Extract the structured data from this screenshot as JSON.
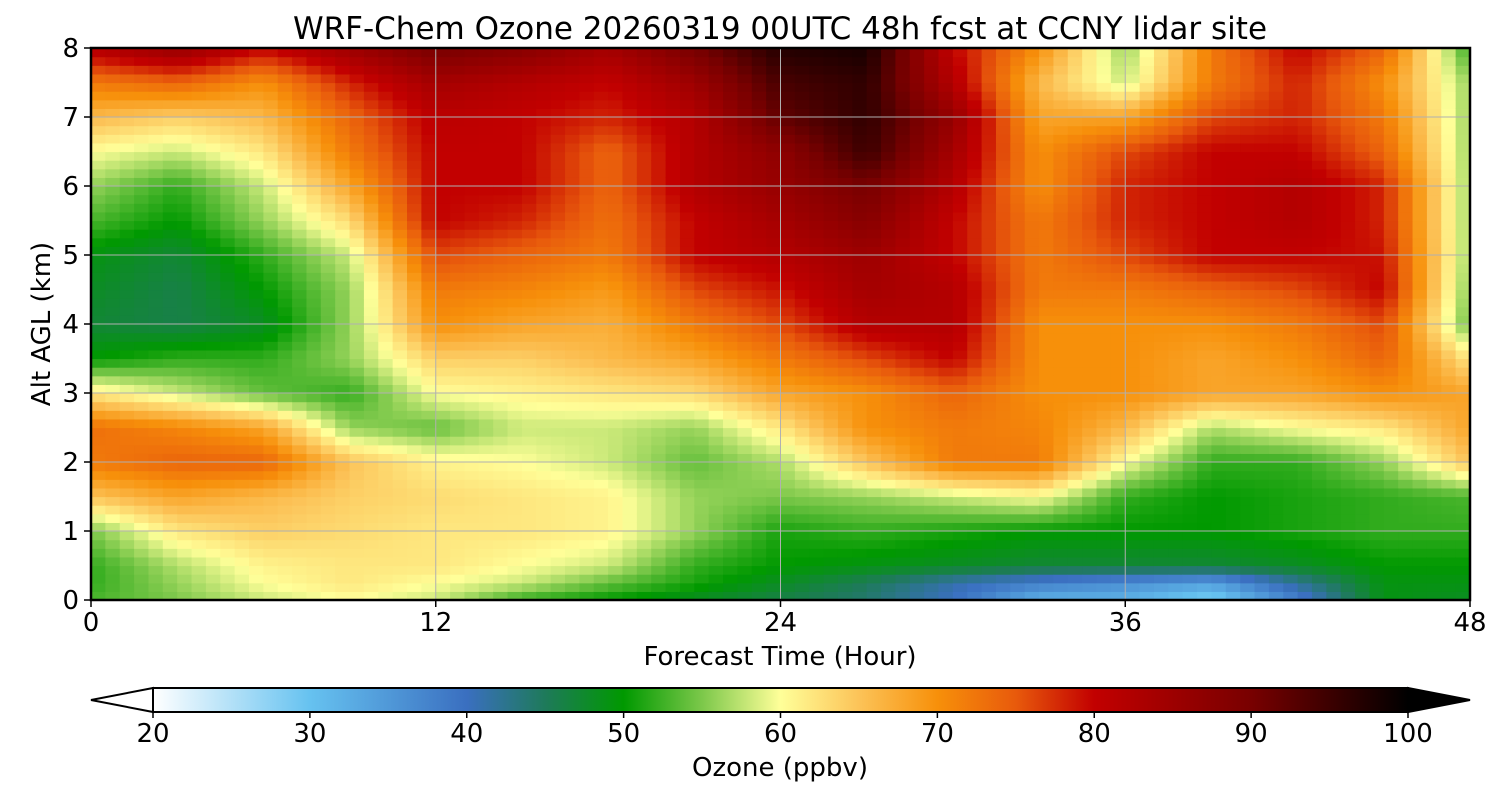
{
  "chart_data": {
    "type": "heatmap",
    "title": "WRF-Chem Ozone  20260319 00UTC 48h fcst at CCNY lidar site",
    "xlabel": "Forecast Time (Hour)",
    "ylabel": "Alt AGL (km)",
    "xlim": [
      0,
      48
    ],
    "ylim": [
      0,
      8
    ],
    "xticks": [
      0,
      12,
      24,
      36,
      48
    ],
    "yticks": [
      0,
      1,
      2,
      3,
      4,
      5,
      6,
      7,
      8
    ],
    "grid": true,
    "colorbar": {
      "label": "Ozone  (ppbv)",
      "min": 20,
      "max": 100,
      "ticks": [
        20,
        30,
        40,
        50,
        60,
        70,
        80,
        90,
        100
      ],
      "extend": "both",
      "stops": [
        {
          "v": 20,
          "c": "#ffffff"
        },
        {
          "v": 30,
          "c": "#66c2f0"
        },
        {
          "v": 40,
          "c": "#3a6fc0"
        },
        {
          "v": 45,
          "c": "#1e7a5a"
        },
        {
          "v": 50,
          "c": "#009900"
        },
        {
          "v": 55,
          "c": "#7cc84a"
        },
        {
          "v": 60,
          "c": "#ffff99"
        },
        {
          "v": 65,
          "c": "#fcc358"
        },
        {
          "v": 70,
          "c": "#f7900a"
        },
        {
          "v": 75,
          "c": "#e85a0c"
        },
        {
          "v": 80,
          "c": "#c20000"
        },
        {
          "v": 90,
          "c": "#780000"
        },
        {
          "v": 100,
          "c": "#000000"
        }
      ]
    },
    "x": [
      0,
      3,
      6,
      9,
      12,
      15,
      18,
      21,
      24,
      27,
      30,
      33,
      36,
      39,
      42,
      45,
      48
    ],
    "y": [
      0,
      0.25,
      0.5,
      1,
      1.5,
      2,
      2.5,
      3,
      3.5,
      4,
      4.5,
      5,
      5.5,
      6,
      6.5,
      7,
      7.5,
      8
    ],
    "z": [
      [
        53,
        55,
        58,
        60,
        58,
        52,
        50,
        48,
        46,
        44,
        40,
        32,
        32,
        28,
        38,
        49,
        48
      ],
      [
        52,
        56,
        60,
        62,
        60,
        58,
        54,
        51,
        48,
        45,
        41,
        38,
        36,
        34,
        42,
        49,
        49
      ],
      [
        52,
        57,
        61,
        62,
        62,
        60,
        58,
        52,
        50,
        49,
        48,
        47,
        47,
        47,
        48,
        50,
        50
      ],
      [
        55,
        62,
        64,
        63,
        62,
        62,
        61,
        56,
        51,
        52,
        51,
        50,
        50,
        50,
        51,
        52,
        52
      ],
      [
        65,
        68,
        66,
        64,
        63,
        62,
        61,
        56,
        55,
        56,
        58,
        60,
        52,
        50,
        51,
        52,
        53
      ],
      [
        72,
        74,
        74,
        65,
        61,
        60,
        58,
        54,
        57,
        65,
        72,
        72,
        60,
        52,
        52,
        56,
        65
      ],
      [
        73,
        71,
        68,
        56,
        54,
        58,
        58,
        56,
        62,
        70,
        72,
        71,
        66,
        57,
        60,
        62,
        68
      ],
      [
        62,
        58,
        54,
        52,
        60,
        61,
        62,
        63,
        68,
        70,
        74,
        70,
        70,
        68,
        68,
        70,
        68
      ],
      [
        50,
        52,
        52,
        56,
        64,
        64,
        66,
        68,
        72,
        76,
        80,
        70,
        70,
        68,
        70,
        74,
        62
      ],
      [
        47,
        46,
        48,
        56,
        70,
        68,
        67,
        72,
        76,
        82,
        82,
        70,
        70,
        70,
        72,
        76,
        54
      ],
      [
        48,
        46,
        50,
        56,
        72,
        71,
        69,
        76,
        79,
        84,
        82,
        72,
        72,
        74,
        76,
        80,
        55
      ],
      [
        49,
        47,
        52,
        58,
        76,
        74,
        72,
        80,
        82,
        85,
        80,
        72,
        76,
        80,
        80,
        79,
        56
      ],
      [
        53,
        50,
        56,
        63,
        80,
        78,
        73,
        80,
        84,
        88,
        80,
        72,
        78,
        80,
        82,
        78,
        56
      ],
      [
        56,
        52,
        58,
        68,
        80,
        80,
        74,
        82,
        86,
        90,
        82,
        70,
        78,
        80,
        82,
        78,
        56
      ],
      [
        60,
        58,
        62,
        72,
        80,
        80,
        74,
        82,
        87,
        95,
        84,
        70,
        76,
        80,
        80,
        74,
        56
      ],
      [
        66,
        64,
        66,
        74,
        81,
        80,
        78,
        82,
        92,
        96,
        86,
        68,
        68,
        76,
        78,
        72,
        56
      ],
      [
        72,
        74,
        70,
        78,
        84,
        82,
        80,
        85,
        94,
        96,
        82,
        66,
        58,
        72,
        78,
        70,
        56
      ],
      [
        82,
        86,
        80,
        85,
        90,
        88,
        84,
        90,
        97,
        98,
        80,
        70,
        56,
        72,
        80,
        74,
        52
      ]
    ]
  }
}
